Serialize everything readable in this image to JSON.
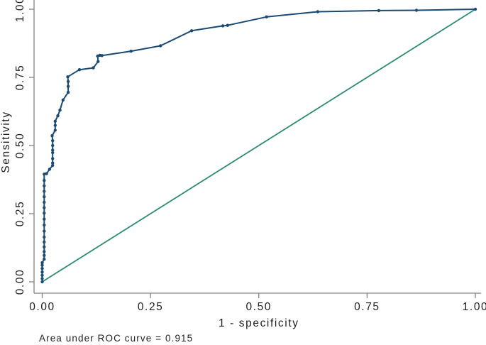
{
  "chart_data": {
    "type": "line",
    "title": "",
    "xlabel": "1 - specificity",
    "ylabel": "Sensitivity",
    "xlim": [
      0,
      1
    ],
    "ylim": [
      0,
      1
    ],
    "grid": false,
    "legend": "none",
    "caption": "Area under ROC curve = 0.915",
    "auc": 0.915,
    "x_ticks": [
      {
        "value": 0.0,
        "label": "0.00"
      },
      {
        "value": 0.25,
        "label": "0.25"
      },
      {
        "value": 0.5,
        "label": "0.50"
      },
      {
        "value": 0.75,
        "label": "0.75"
      },
      {
        "value": 1.0,
        "label": "1.00"
      }
    ],
    "y_ticks": [
      {
        "value": 0.0,
        "label": "0.00"
      },
      {
        "value": 0.25,
        "label": "0.25"
      },
      {
        "value": 0.5,
        "label": "0.50"
      },
      {
        "value": 0.75,
        "label": "0.75"
      },
      {
        "value": 1.0,
        "label": "1.00"
      }
    ],
    "series": [
      {
        "name": "ROC curve",
        "color": "#1b4a73",
        "marker": "circle",
        "marker_size": 2.2,
        "line_width": 2,
        "points": [
          [
            0.0,
            0.0
          ],
          [
            0.0,
            0.012
          ],
          [
            0.0,
            0.024
          ],
          [
            0.0,
            0.036
          ],
          [
            0.0,
            0.049
          ],
          [
            0.0,
            0.061
          ],
          [
            0.0,
            0.07
          ],
          [
            0.0046,
            0.083
          ],
          [
            0.0046,
            0.097
          ],
          [
            0.0046,
            0.111
          ],
          [
            0.0046,
            0.128
          ],
          [
            0.0046,
            0.146
          ],
          [
            0.0046,
            0.164
          ],
          [
            0.0046,
            0.186
          ],
          [
            0.0046,
            0.208
          ],
          [
            0.0046,
            0.23
          ],
          [
            0.0046,
            0.252
          ],
          [
            0.0046,
            0.272
          ],
          [
            0.0046,
            0.292
          ],
          [
            0.0046,
            0.312
          ],
          [
            0.0046,
            0.332
          ],
          [
            0.0046,
            0.352
          ],
          [
            0.0046,
            0.372
          ],
          [
            0.0046,
            0.395
          ],
          [
            0.01,
            0.397
          ],
          [
            0.017,
            0.413
          ],
          [
            0.024,
            0.427
          ],
          [
            0.024,
            0.436
          ],
          [
            0.024,
            0.452
          ],
          [
            0.024,
            0.474
          ],
          [
            0.024,
            0.483
          ],
          [
            0.024,
            0.5
          ],
          [
            0.024,
            0.518
          ],
          [
            0.023,
            0.536
          ],
          [
            0.03,
            0.556
          ],
          [
            0.03,
            0.574
          ],
          [
            0.03,
            0.589
          ],
          [
            0.036,
            0.609
          ],
          [
            0.041,
            0.63
          ],
          [
            0.048,
            0.667
          ],
          [
            0.06,
            0.695
          ],
          [
            0.06,
            0.717
          ],
          [
            0.06,
            0.735
          ],
          [
            0.059,
            0.752
          ],
          [
            0.086,
            0.778
          ],
          [
            0.118,
            0.785
          ],
          [
            0.129,
            0.808
          ],
          [
            0.128,
            0.828
          ],
          [
            0.133,
            0.831
          ],
          [
            0.138,
            0.83
          ],
          [
            0.205,
            0.846
          ],
          [
            0.273,
            0.866
          ],
          [
            0.345,
            0.921
          ],
          [
            0.417,
            0.939
          ],
          [
            0.428,
            0.941
          ],
          [
            0.518,
            0.972
          ],
          [
            0.636,
            0.991
          ],
          [
            0.777,
            0.995
          ],
          [
            0.864,
            0.996
          ],
          [
            1.0,
            1.0
          ]
        ]
      },
      {
        "name": "Reference line",
        "color": "#2d8b75",
        "marker": "none",
        "marker_size": 0,
        "line_width": 1.8,
        "points": [
          [
            0.0,
            0.0
          ],
          [
            1.0,
            1.0
          ]
        ]
      }
    ]
  },
  "colors": {
    "background": "#ffffff",
    "axis": "#828282",
    "text": "#1f1f1f",
    "roc_line": "#1b4a73",
    "reference_line": "#2d8b75"
  }
}
